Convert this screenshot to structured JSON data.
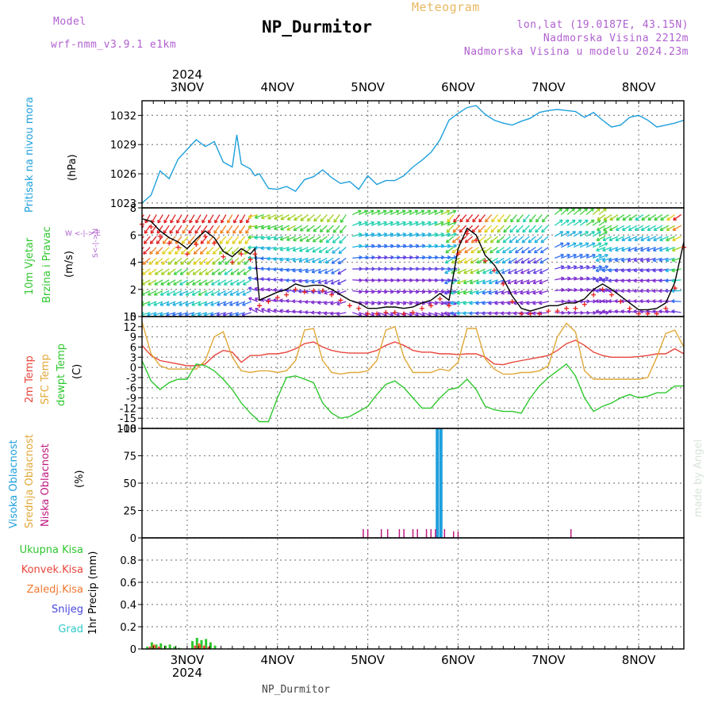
{
  "header": {
    "model_label": "Model",
    "model_name": "wrf-nmm_v3.9.1  e1km",
    "title": "NP_Durmitor",
    "subtitle": "Meteogram",
    "coords": "lon,lat (19.0187E, 43.15N)",
    "elevation": "Nadmorska Visina 2212m",
    "model_elevation": "Nadmorska Visina u modelu 2024.23m"
  },
  "footer": {
    "station": "NP_Durmitor",
    "watermark": "made by Angel"
  },
  "axis_labels": {
    "pressure": "Pritisak na nivou mora",
    "pressure_unit": "(hPa)",
    "wind_1": "10m Vjetar",
    "wind_2": "Brzina i Pravac",
    "wind_unit": "(m/s)",
    "wind_compass": "W <-|-> E",
    "wind_compass2": "S<-|->N",
    "temp_1": "2m Temp",
    "temp_2": "SFC Temp",
    "temp_3": "dewpt Temp",
    "temp_unit": "(C)",
    "cloud_1": "Visoka Oblacnost",
    "cloud_2": "Srednja Oblacnost",
    "cloud_3": "Niska Oblacnost",
    "cloud_unit": "(%)",
    "precip_axis": "1hr Precip (mm)",
    "precip_legend": [
      "Ukupna Kisa",
      "Konvek.Kisa",
      "Zaledj.Kisa",
      "Snijeg",
      "Grad"
    ]
  },
  "colors": {
    "pressure": "#1ea0dc",
    "temp2m": "#e8463c",
    "sfc": "#e0a838",
    "dewpt": "#2ec82e",
    "cloud_high": "#1ea0dc",
    "cloud_mid": "#e0a838",
    "cloud_low": "#c01880",
    "total_rain": "#2ec82e",
    "conv_rain": "#e8463c",
    "frz_rain": "#f07830",
    "snow": "#4848e0",
    "grad": "#30c8c8",
    "wind_speed_line": "#000000",
    "wind_gust": "#e82020",
    "model": "#b060d0",
    "header_title": "#000000"
  },
  "time_axis": {
    "year": "2024",
    "days": [
      "3NOV",
      "4NOV",
      "5NOV",
      "6NOV",
      "7NOV",
      "8NOV"
    ],
    "day_start_positions": [
      0.5,
      1.5,
      2.5,
      3.5,
      4.5,
      5.5
    ],
    "x_range": [
      0,
      6
    ]
  },
  "chart_data": [
    {
      "type": "line",
      "name": "pressure",
      "ylim": [
        1022.5,
        1033.5
      ],
      "yticks": [
        "1023",
        "1026",
        "1029",
        "1032"
      ],
      "x": [
        0,
        0.1,
        0.2,
        0.3,
        0.4,
        0.5,
        0.6,
        0.7,
        0.8,
        0.9,
        1.0,
        1.05,
        1.1,
        1.2,
        1.25,
        1.3,
        1.4,
        1.5,
        1.6,
        1.7,
        1.8,
        1.9,
        2.0,
        2.1,
        2.2,
        2.3,
        2.4,
        2.5,
        2.6,
        2.7,
        2.8,
        2.9,
        3.0,
        3.1,
        3.2,
        3.3,
        3.4,
        3.5,
        3.6,
        3.7,
        3.8,
        3.9,
        4.0,
        4.1,
        4.2,
        4.3,
        4.4,
        4.5,
        4.6,
        4.7,
        4.8,
        4.9,
        5.0,
        5.1,
        5.2,
        5.3,
        5.4,
        5.5,
        5.6,
        5.7,
        5.8,
        5.9,
        6.0
      ],
      "values": [
        1023.0,
        1023.8,
        1026.3,
        1025.5,
        1027.5,
        1028.5,
        1029.5,
        1028.8,
        1029.3,
        1027.2,
        1026.7,
        1030.0,
        1027.0,
        1026.5,
        1025.8,
        1026.0,
        1024.5,
        1024.4,
        1024.7,
        1024.2,
        1025.4,
        1025.7,
        1026.4,
        1025.6,
        1025.0,
        1025.2,
        1024.4,
        1025.8,
        1024.9,
        1025.3,
        1025.3,
        1025.8,
        1026.7,
        1027.4,
        1028.2,
        1029.5,
        1031.5,
        1032.2,
        1032.8,
        1033.0,
        1032.1,
        1031.5,
        1031.2,
        1031.0,
        1031.4,
        1031.7,
        1032.3,
        1032.5,
        1032.6,
        1032.5,
        1032.4,
        1031.8,
        1032.3,
        1031.5,
        1030.8,
        1031.0,
        1031.8,
        1032.0,
        1031.5,
        1030.8,
        1031.0,
        1031.2,
        1031.5
      ]
    },
    {
      "type": "line",
      "name": "wind",
      "ylim": [
        0,
        8
      ],
      "yticks": [
        "0",
        "2",
        "4",
        "6",
        "8"
      ],
      "x": [
        0,
        0.1,
        0.2,
        0.3,
        0.4,
        0.5,
        0.6,
        0.7,
        0.8,
        0.9,
        1.0,
        1.1,
        1.2,
        1.25,
        1.3,
        1.4,
        1.5,
        1.6,
        1.7,
        1.8,
        1.9,
        2.0,
        2.1,
        2.2,
        2.3,
        2.4,
        2.5,
        2.6,
        2.7,
        2.8,
        2.9,
        3.0,
        3.1,
        3.2,
        3.3,
        3.4,
        3.5,
        3.6,
        3.7,
        3.8,
        3.9,
        4.0,
        4.1,
        4.2,
        4.3,
        4.4,
        4.5,
        4.6,
        4.7,
        4.8,
        4.9,
        5.0,
        5.1,
        5.2,
        5.3,
        5.4,
        5.5,
        5.6,
        5.7,
        5.8,
        5.9,
        6.0
      ],
      "values": [
        7.2,
        7.0,
        6.3,
        5.8,
        5.5,
        5.0,
        5.7,
        6.3,
        5.8,
        4.8,
        4.4,
        5.0,
        4.6,
        5.0,
        1.2,
        1.5,
        1.8,
        2.0,
        2.4,
        2.2,
        2.3,
        2.3,
        2.0,
        1.6,
        1.2,
        1.0,
        0.6,
        0.6,
        0.7,
        0.7,
        0.6,
        0.7,
        1.0,
        1.2,
        1.7,
        1.2,
        5.0,
        6.5,
        6.0,
        4.5,
        3.8,
        2.8,
        1.5,
        0.6,
        0.4,
        0.6,
        0.8,
        0.8,
        1.0,
        1.0,
        1.3,
        2.0,
        2.4,
        2.0,
        1.5,
        1.0,
        0.5,
        0.5,
        0.6,
        1.0,
        2.5,
        5.5
      ]
    },
    {
      "type": "line",
      "name": "temperature",
      "ylim": [
        -18,
        15
      ],
      "yticks": [
        "-18",
        "-15",
        "-12",
        "-9",
        "-6",
        "-3",
        "0",
        "3",
        "6",
        "9",
        "12",
        "15"
      ],
      "x": [
        0,
        0.1,
        0.2,
        0.3,
        0.4,
        0.5,
        0.6,
        0.7,
        0.8,
        0.9,
        1.0,
        1.1,
        1.2,
        1.3,
        1.4,
        1.5,
        1.6,
        1.7,
        1.8,
        1.9,
        2.0,
        2.1,
        2.2,
        2.3,
        2.4,
        2.5,
        2.6,
        2.7,
        2.8,
        2.9,
        3.0,
        3.1,
        3.2,
        3.3,
        3.4,
        3.5,
        3.6,
        3.7,
        3.8,
        3.9,
        4.0,
        4.1,
        4.2,
        4.3,
        4.4,
        4.5,
        4.6,
        4.7,
        4.8,
        4.9,
        5.0,
        5.1,
        5.2,
        5.3,
        5.4,
        5.5,
        5.6,
        5.7,
        5.8,
        5.9,
        6.0
      ],
      "series": [
        {
          "name": "2m Temp",
          "values": [
            6.5,
            3.5,
            2.0,
            1.5,
            1.0,
            0.5,
            0.5,
            1.0,
            3.5,
            5.0,
            4.5,
            1.5,
            3.5,
            3.5,
            4.0,
            4.0,
            4.5,
            5.5,
            7.0,
            7.5,
            6.0,
            5.0,
            4.5,
            4.2,
            4.2,
            4.2,
            5.0,
            6.5,
            7.5,
            6.5,
            5.0,
            4.5,
            4.5,
            4.0,
            4.0,
            3.8,
            4.0,
            4.0,
            3.0,
            1.0,
            0.8,
            1.5,
            2.0,
            2.5,
            3.0,
            3.5,
            5.0,
            7.0,
            8.0,
            6.5,
            4.5,
            3.5,
            3.0,
            3.0,
            3.0,
            3.2,
            3.5,
            4.0,
            4.0,
            5.5,
            4.0
          ]
        },
        {
          "name": "SFC Temp",
          "values": [
            13.5,
            4.0,
            0.5,
            -0.5,
            -0.5,
            -0.5,
            -0.5,
            2.0,
            9.0,
            10.5,
            3.0,
            -1.0,
            -1.5,
            -1.0,
            -1.0,
            -1.5,
            -1.0,
            2.0,
            11.0,
            11.5,
            2.0,
            -1.5,
            -2.0,
            -1.5,
            -1.5,
            -1.0,
            2.0,
            11.0,
            12.0,
            3.0,
            -1.5,
            -1.5,
            -1.5,
            -0.5,
            -1.0,
            1.5,
            11.5,
            11.5,
            2.5,
            -0.5,
            -2.0,
            -2.0,
            -1.5,
            -1.5,
            -1.0,
            0.5,
            9.0,
            13.0,
            10.5,
            -1.0,
            -3.5,
            -3.5,
            -3.5,
            -3.5,
            -3.5,
            -3.5,
            -3.0,
            3.0,
            10.0,
            11.0,
            6.0
          ]
        },
        {
          "name": "dewpt Temp",
          "values": [
            2.0,
            -4.0,
            -6.5,
            -4.5,
            -3.5,
            -3.5,
            1.0,
            0.5,
            -1.0,
            -3.5,
            -6.5,
            -10.5,
            -13.5,
            -16.0,
            -16.0,
            -9.0,
            -3.0,
            -2.5,
            -3.5,
            -4.5,
            -10.5,
            -13.5,
            -15.0,
            -14.5,
            -13.0,
            -11.5,
            -8.0,
            -5.0,
            -4.0,
            -6.0,
            -9.0,
            -12.0,
            -12.0,
            -9.0,
            -6.5,
            -6.0,
            -3.5,
            -6.5,
            -11.5,
            -12.5,
            -13.0,
            -13.0,
            -13.5,
            -9.0,
            -5.5,
            -3.0,
            -1.0,
            1.0,
            -2.5,
            -9.0,
            -13.0,
            -11.5,
            -10.5,
            -9.0,
            -8.0,
            -9.0,
            -8.5,
            -7.5,
            -7.5,
            -5.5,
            -5.5
          ]
        }
      ]
    },
    {
      "type": "bar",
      "name": "clouds",
      "ylim": [
        0,
        100
      ],
      "yticks": [
        "0",
        "25",
        "50",
        "75",
        "100"
      ],
      "series": [
        {
          "name": "Visoka Oblacnost",
          "x": [
            3.27,
            3.31
          ],
          "values": [
            100,
            100
          ]
        },
        {
          "name": "Niska Oblacnost",
          "x": [
            2.45,
            2.5,
            2.65,
            2.72,
            2.85,
            2.9,
            3.0,
            3.05,
            3.15,
            3.2,
            3.25,
            3.35,
            3.45,
            3.5,
            4.75
          ],
          "values": [
            8,
            8,
            8,
            8,
            8,
            8,
            8,
            8,
            8,
            8,
            8,
            8,
            6,
            6,
            8
          ]
        }
      ]
    },
    {
      "type": "bar",
      "name": "precipitation",
      "ylim": [
        0,
        1
      ],
      "yticks": [
        "0",
        "0.2",
        "0.4",
        "0.6",
        "0.8"
      ],
      "series": [
        {
          "name": "Ukupna Kisa",
          "x": [
            0.05,
            0.1,
            0.15,
            0.2,
            0.25,
            0.3,
            0.35,
            0.4,
            0.55,
            0.6,
            0.65,
            0.7,
            0.75,
            0.8
          ],
          "values": [
            0.02,
            0.06,
            0.04,
            0.05,
            0.03,
            0.04,
            0.02,
            0.01,
            0.07,
            0.1,
            0.08,
            0.09,
            0.06,
            0.03
          ]
        },
        {
          "name": "Konvek.Kisa",
          "x": [
            0.08,
            0.13,
            0.18,
            0.58,
            0.63,
            0.68,
            0.73
          ],
          "values": [
            0.02,
            0.03,
            0.02,
            0.03,
            0.04,
            0.03,
            0.02
          ]
        },
        {
          "name": "Zaledj.Kisa",
          "x": [
            0.12,
            0.62
          ],
          "values": [
            0.04,
            0.05
          ]
        }
      ]
    }
  ]
}
